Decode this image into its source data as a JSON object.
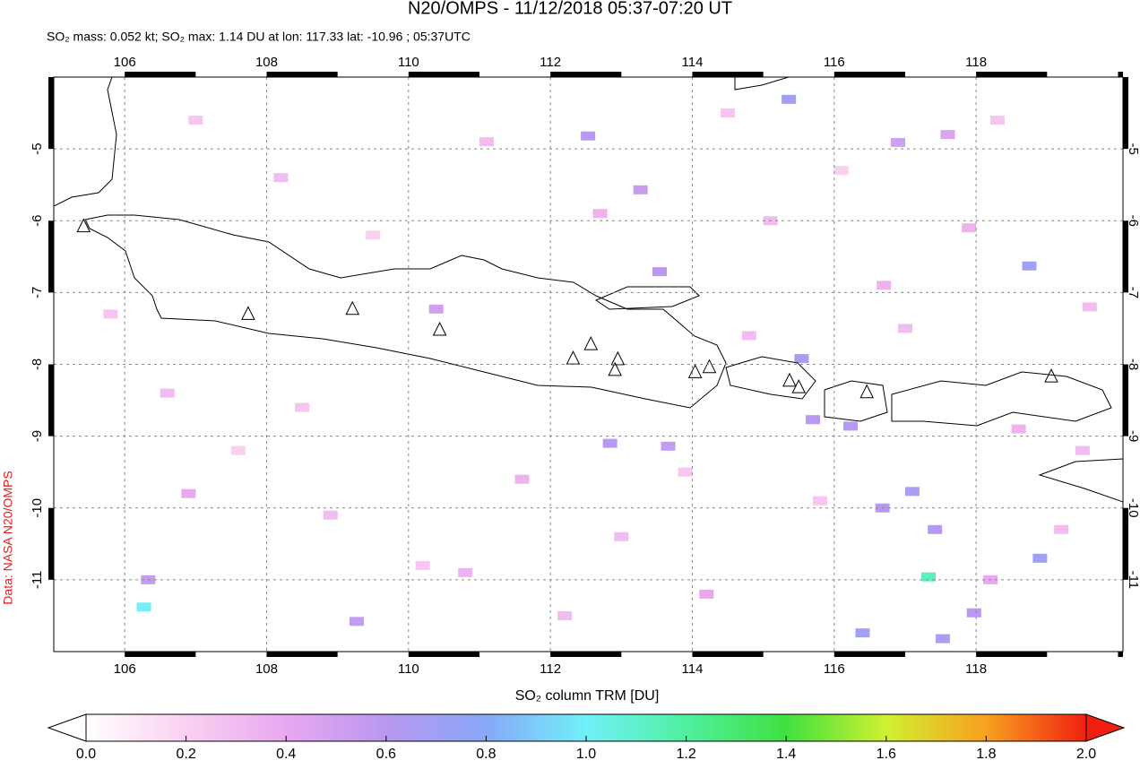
{
  "chart_data": {
    "type": "map",
    "title": "N20/OMPS - 11/12/2018 05:37-07:20 UT",
    "subtitle": "SO₂ mass: 0.052 kt; SO₂ max: 1.14 DU at lon: 117.33 lat: -10.96 ; 05:37UTC",
    "credit": "Data: NASA N20/OMPS",
    "colorbar_label": "SO₂ column TRM [DU]",
    "xlim": [
      105,
      120.07
    ],
    "ylim": [
      -12,
      -4
    ],
    "xticks": [
      106,
      108,
      110,
      112,
      114,
      116,
      118
    ],
    "yticks": [
      -5,
      -6,
      -7,
      -8,
      -9,
      -10,
      -11
    ],
    "grid": true,
    "clim": [
      0,
      2
    ],
    "cticks": [
      {
        "value": 0,
        "label": "0.0"
      },
      {
        "value": 0.2,
        "label": "0.2"
      },
      {
        "value": 0.4,
        "label": "0.4"
      },
      {
        "value": 0.6,
        "label": "0.6"
      },
      {
        "value": 0.8,
        "label": "0.8"
      },
      {
        "value": 1,
        "label": "1.0"
      },
      {
        "value": 1.2,
        "label": "1.2"
      },
      {
        "value": 1.4,
        "label": "1.4"
      },
      {
        "value": 1.6,
        "label": "1.6"
      },
      {
        "value": 1.8,
        "label": "1.8"
      },
      {
        "value": 2,
        "label": "2.0"
      }
    ],
    "pixels": {
      "lon": [
        115.36,
        118.75,
        113.54,
        118.9,
        116.4,
        117.97,
        117.53,
        117.1,
        116.68,
        112.53,
        113.27,
        112.84,
        113.66,
        115.54,
        115.7,
        116.23,
        116.9,
        117.6,
        117.42,
        117.33,
        106.27,
        106.33,
        109.27,
        110.39,
        107.0,
        108.2,
        109.5,
        111.1,
        112.7,
        114.5,
        115.1,
        116.1,
        117.9,
        118.3,
        119.6,
        105.8,
        106.6,
        107.6,
        108.9,
        110.2,
        111.6,
        113.0,
        114.2,
        115.8,
        117.0,
        118.6,
        119.2,
        106.9,
        108.5,
        110.8,
        112.2,
        113.9,
        114.8,
        116.7,
        118.2,
        119.5
      ],
      "lat": [
        -4.31,
        -6.63,
        -6.71,
        -10.7,
        -11.74,
        -11.46,
        -11.82,
        -9.77,
        -10.0,
        -4.82,
        -5.57,
        -9.1,
        -9.14,
        -7.92,
        -8.77,
        -8.86,
        -4.91,
        -4.8,
        -10.3,
        -10.96,
        -11.38,
        -11.0,
        -11.58,
        -7.23,
        -4.6,
        -5.4,
        -6.2,
        -4.9,
        -5.9,
        -4.5,
        -6.0,
        -5.3,
        -6.1,
        -4.6,
        -7.2,
        -7.3,
        -8.4,
        -9.2,
        -10.1,
        -10.8,
        -9.6,
        -10.4,
        -11.2,
        -9.9,
        -7.5,
        -8.9,
        -10.3,
        -9.8,
        -8.6,
        -10.9,
        -11.5,
        -9.5,
        -7.6,
        -6.9,
        -11.0,
        -9.2
      ],
      "values": [
        0.7,
        0.7,
        0.6,
        0.7,
        0.7,
        0.6,
        0.65,
        0.65,
        0.6,
        0.6,
        0.55,
        0.6,
        0.55,
        0.65,
        0.6,
        0.6,
        0.5,
        0.45,
        0.6,
        1.14,
        1.0,
        0.55,
        0.55,
        0.5,
        0.25,
        0.3,
        0.2,
        0.3,
        0.35,
        0.25,
        0.3,
        0.2,
        0.35,
        0.25,
        0.3,
        0.25,
        0.3,
        0.2,
        0.3,
        0.25,
        0.35,
        0.3,
        0.4,
        0.25,
        0.3,
        0.35,
        0.3,
        0.4,
        0.25,
        0.35,
        0.3,
        0.25,
        0.3,
        0.35,
        0.4,
        0.3
      ]
    },
    "volcanoes": {
      "lon": [
        105.42,
        107.74,
        109.21,
        110.44,
        112.32,
        112.57,
        112.95,
        112.91,
        114.04,
        114.24,
        115.37,
        115.5,
        116.46,
        119.06
      ],
      "lat": [
        -6.08,
        -7.3,
        -7.23,
        -7.52,
        -7.92,
        -7.72,
        -7.93,
        -8.08,
        -8.11,
        -8.04,
        -8.23,
        -8.32,
        -8.39,
        -8.17
      ]
    }
  }
}
